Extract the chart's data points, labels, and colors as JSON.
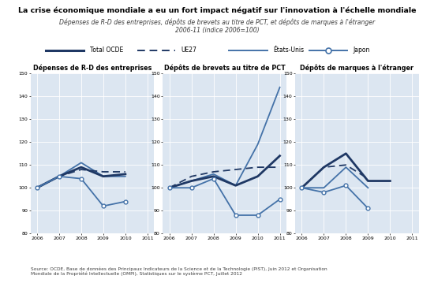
{
  "title": "La crise économique mondiale a eu un fort impact négatif sur l'innovation à l'échelle mondiale",
  "subtitle1": "Dépenses de R-D des entreprises, dépôts de brevets au titre de PCT, et dépôts de marques à l'étranger",
  "subtitle2": "2006-11 (indice 2006=100)",
  "source": "Source: OCDE, Base de données des Principaux Indicateurs de la Science et de la Technologie (PIST), Juin 2012 et Organisation\nMondiale de la Propriété Intellectuelle (OMPI), Statistiques sur le système PCT, Juillet 2012",
  "years": [
    2006,
    2007,
    2008,
    2009,
    2010,
    2011
  ],
  "chart1_title": "Dépenses de R-D des entreprises",
  "chart1": {
    "total_ocde": [
      100,
      105,
      109,
      105,
      106,
      null
    ],
    "ue27": [
      100,
      105,
      108,
      107,
      107,
      null
    ],
    "etats_unis": [
      100,
      105,
      111,
      105,
      105,
      null
    ],
    "japon": [
      100,
      105,
      104,
      92,
      94,
      null
    ]
  },
  "chart2_title": "Dépôts de brevets au titre de PCT",
  "chart2": {
    "total_ocde": [
      100,
      103,
      105,
      101,
      105,
      114
    ],
    "ue27": [
      100,
      105,
      107,
      108,
      109,
      109
    ],
    "etats_unis": [
      100,
      103,
      106,
      101,
      119,
      144
    ],
    "japon": [
      100,
      100,
      104,
      88,
      88,
      95
    ]
  },
  "chart3_title": "Dépôts de marques à l'étranger",
  "chart3": {
    "total_ocde": [
      100,
      109,
      115,
      103,
      103,
      null
    ],
    "ue27": [
      100,
      109,
      110,
      104,
      null,
      null
    ],
    "etats_unis": [
      100,
      100,
      109,
      100,
      null,
      null
    ],
    "japon": [
      100,
      98,
      101,
      91,
      null,
      null
    ]
  },
  "color_dark": "#1f3864",
  "color_medium": "#4472a8",
  "fig_bg": "#ffffff",
  "plot_bg": "#dce6f1",
  "legend_bg": "#dce6f1",
  "title_color": "#000000",
  "chart_title_color": "#000000",
  "subtitle_color": "#404040",
  "source_color": "#404040",
  "ylim": [
    80,
    150
  ],
  "yticks": [
    80,
    90,
    100,
    110,
    120,
    130,
    140,
    150
  ]
}
